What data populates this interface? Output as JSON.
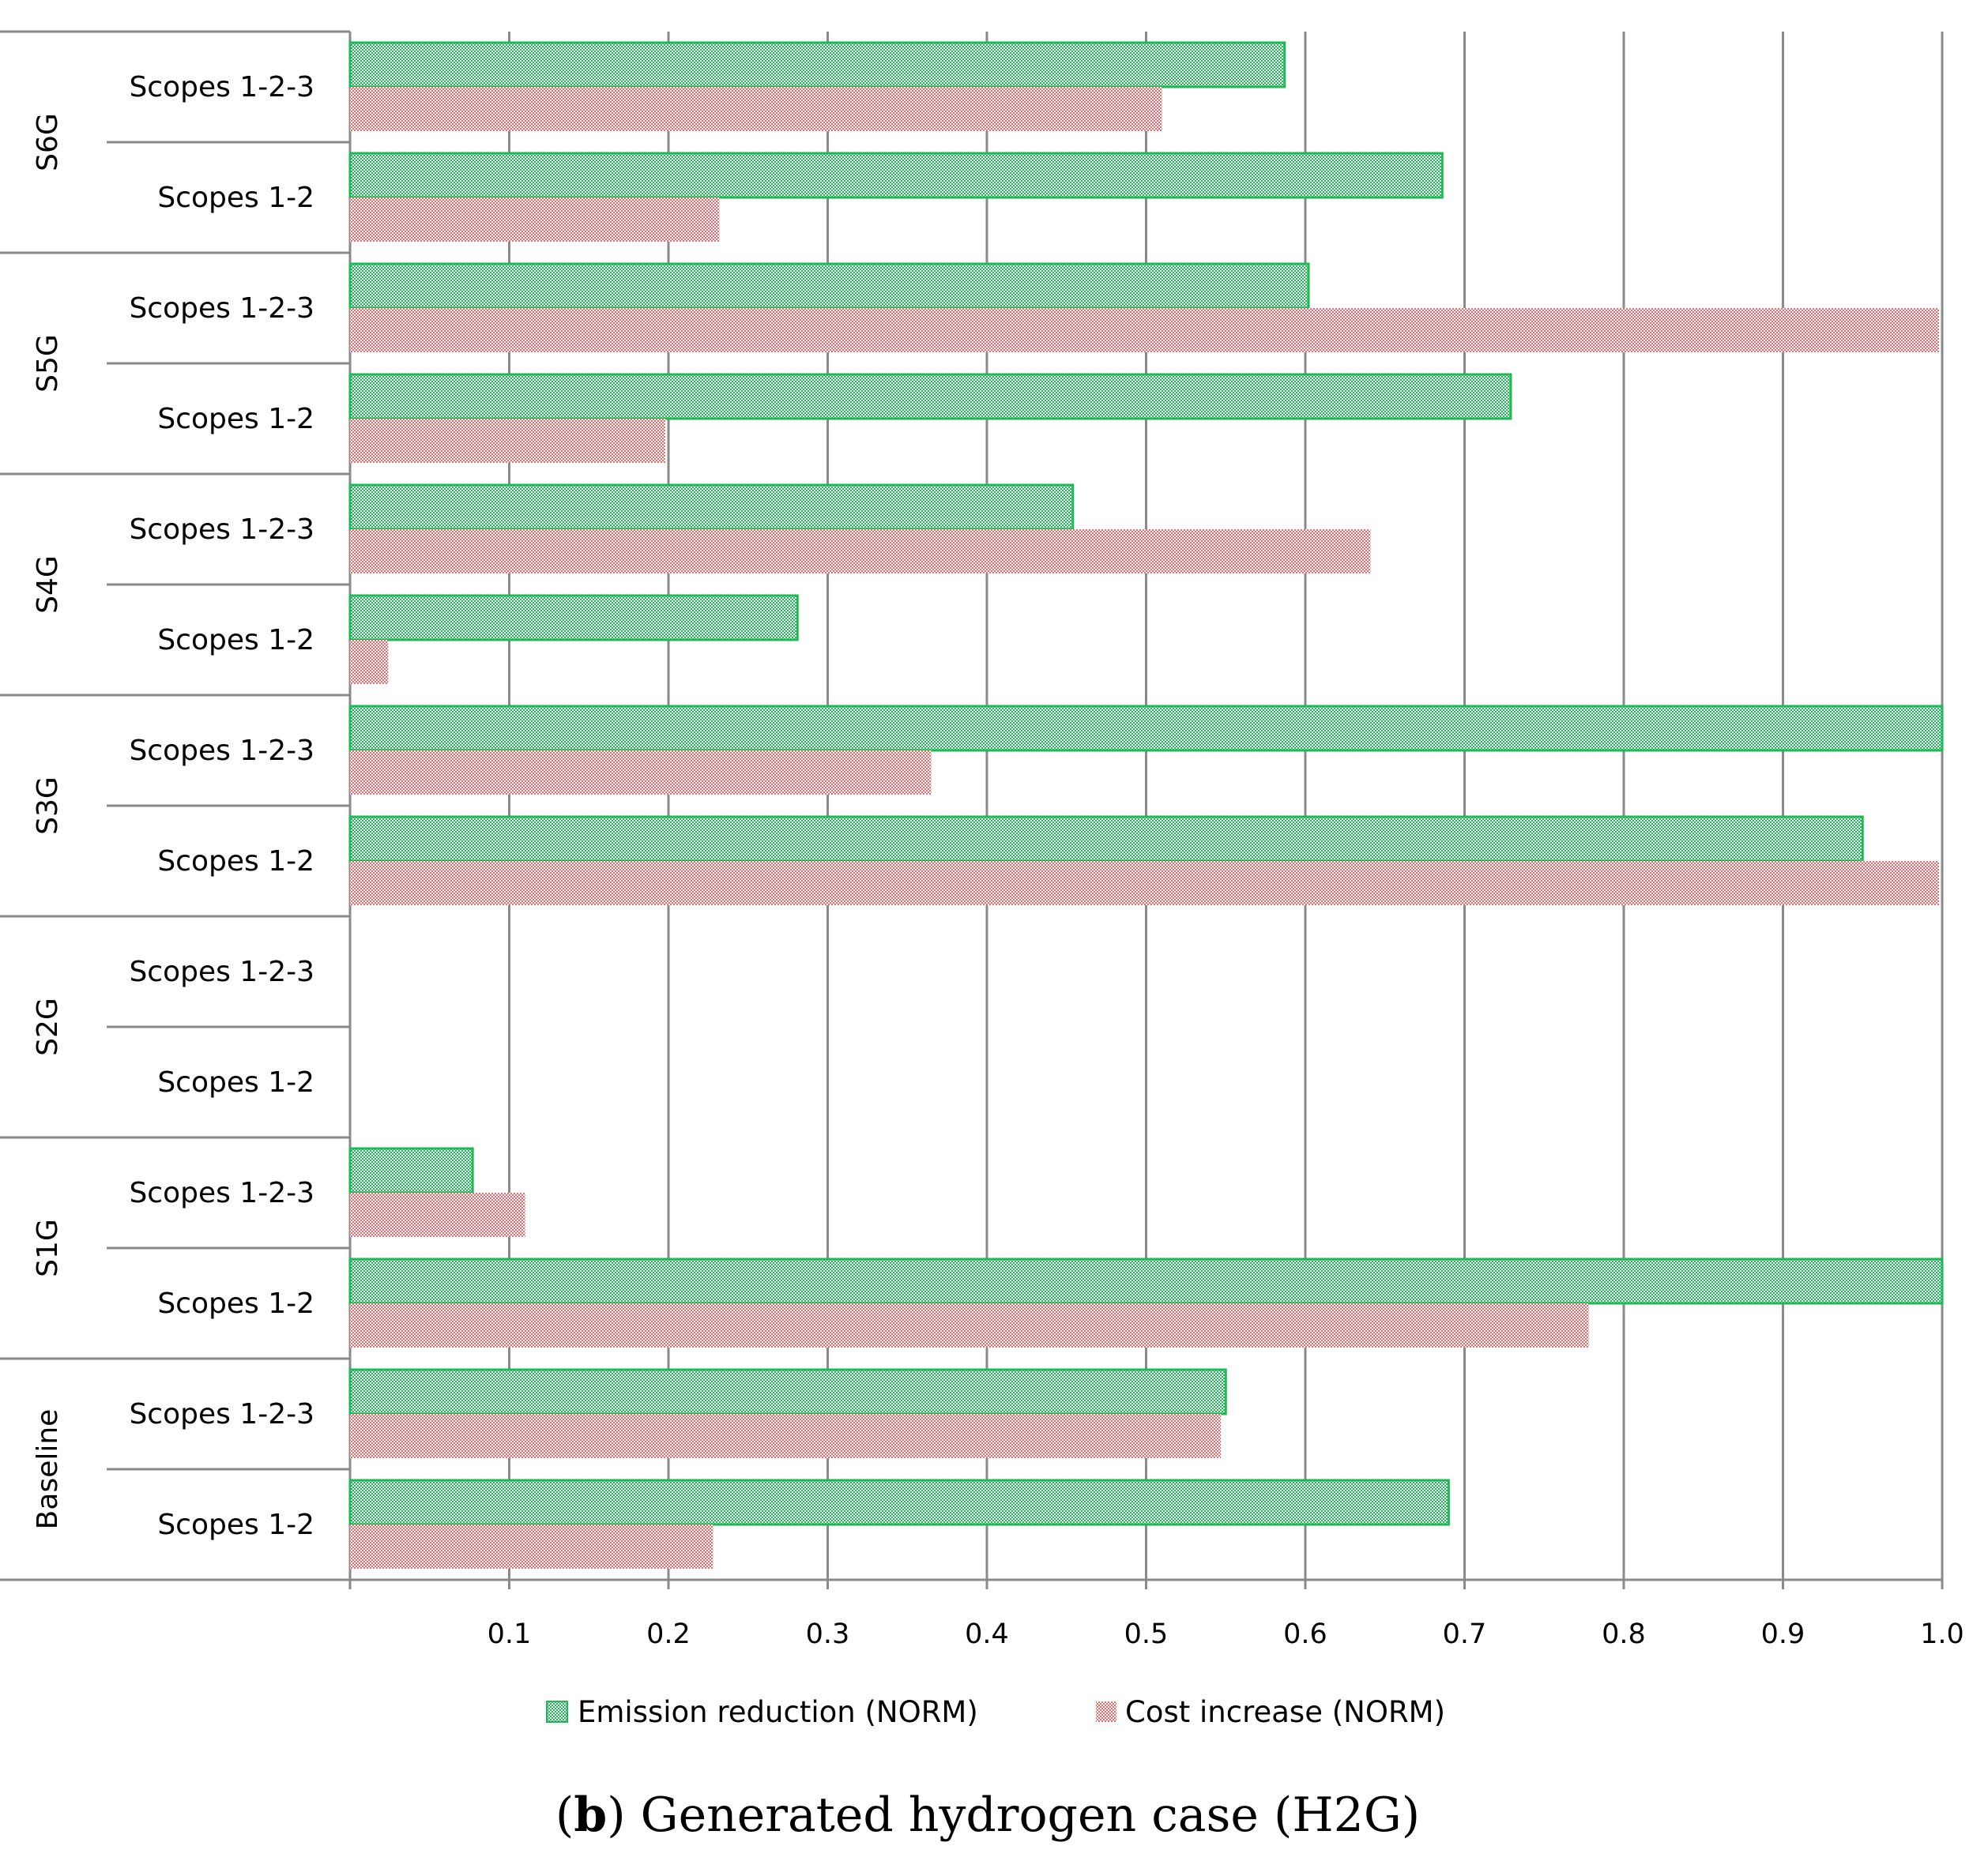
{
  "chart_data": {
    "type": "bar",
    "orientation": "horizontal",
    "title": "",
    "caption_prefix": "(",
    "caption_letter": "b",
    "caption_rest": ") Generated hydrogen case (H2G)",
    "xlim": [
      0,
      1.0
    ],
    "xticks": [
      {
        "value": 0.1,
        "label": "0.1"
      },
      {
        "value": 0.2,
        "label": "0.2"
      },
      {
        "value": 0.3,
        "label": "0.3"
      },
      {
        "value": 0.4,
        "label": "0.4"
      },
      {
        "value": 0.5,
        "label": "0.5"
      },
      {
        "value": 0.6,
        "label": "0.6"
      },
      {
        "value": 0.7,
        "label": "0.7"
      },
      {
        "value": 0.8,
        "label": "0.8"
      },
      {
        "value": 0.9,
        "label": "0.9"
      },
      {
        "value": 1.0,
        "label": "1.0"
      }
    ],
    "grid": "vertical",
    "legend_position": "bottom",
    "series": [
      {
        "name": "Emission reduction (NORM)",
        "color": "#1db954",
        "pattern": "checker"
      },
      {
        "name": "Cost increase (NORM)",
        "color": "#f0676a",
        "pattern": "dots"
      }
    ],
    "groups": [
      {
        "name": "S6G",
        "categories": [
          {
            "label": "Scopes 1-2-3",
            "values": [
              0.587,
              0.51
            ]
          },
          {
            "label": "Scopes 1-2",
            "values": [
              0.686,
              0.232
            ]
          }
        ]
      },
      {
        "name": "S5G",
        "categories": [
          {
            "label": "Scopes 1-2-3",
            "values": [
              0.602,
              0.998
            ]
          },
          {
            "label": "Scopes 1-2",
            "values": [
              0.729,
              0.198
            ]
          }
        ]
      },
      {
        "name": "S4G",
        "categories": [
          {
            "label": "Scopes 1-2-3",
            "values": [
              0.454,
              0.641
            ]
          },
          {
            "label": "Scopes 1-2",
            "values": [
              0.281,
              0.024
            ]
          }
        ]
      },
      {
        "name": "S3G",
        "categories": [
          {
            "label": "Scopes 1-2-3",
            "values": [
              1.0,
              0.365
            ]
          },
          {
            "label": "Scopes 1-2",
            "values": [
              0.95,
              0.998
            ]
          }
        ]
      },
      {
        "name": "S2G",
        "categories": [
          {
            "label": "Scopes 1-2-3",
            "values": [
              0,
              0
            ]
          },
          {
            "label": "Scopes 1-2",
            "values": [
              0,
              0
            ]
          }
        ]
      },
      {
        "name": "S1G",
        "categories": [
          {
            "label": "Scopes 1-2-3",
            "values": [
              0.077,
              0.11
            ]
          },
          {
            "label": "Scopes 1-2",
            "values": [
              1.0,
              0.778
            ]
          }
        ]
      },
      {
        "name": "Baseline",
        "categories": [
          {
            "label": "Scopes 1-2-3",
            "values": [
              0.55,
              0.547
            ]
          },
          {
            "label": "Scopes 1-2",
            "values": [
              0.69,
              0.228
            ]
          }
        ]
      }
    ]
  }
}
